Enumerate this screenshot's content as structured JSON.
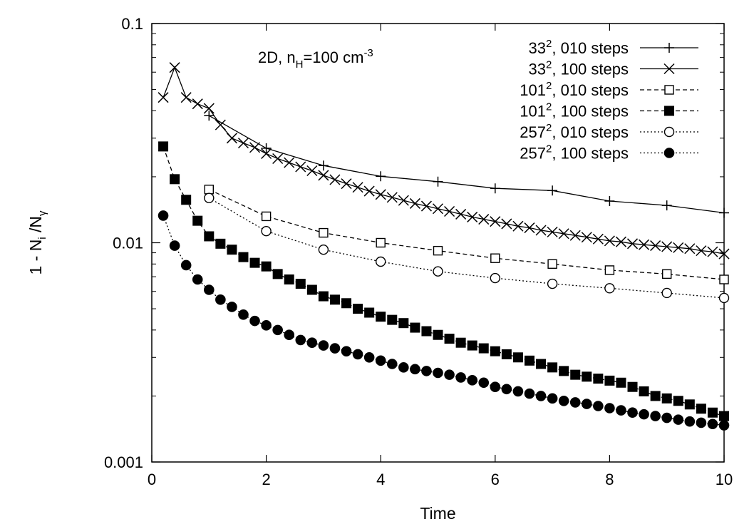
{
  "chart_data": {
    "type": "line",
    "xlabel": "Time",
    "ylabel_parts": [
      "1 - N",
      "i",
      " /N",
      "γ"
    ],
    "xlim": [
      0,
      10
    ],
    "ylim": [
      0.001,
      0.1
    ],
    "yscale": "log",
    "grid": false,
    "legend_position": "top-right",
    "x_ticks": [
      0,
      2,
      4,
      6,
      8,
      10
    ],
    "x_tick_labels": [
      "0",
      "2",
      "4",
      "6",
      "8",
      "10"
    ],
    "y_ticks": [
      0.001,
      0.01,
      0.1
    ],
    "y_tick_labels": [
      "0.001",
      "0.01",
      "0.1"
    ],
    "annotation_parts": [
      "2D, n",
      "H",
      "=100 cm",
      "-3"
    ],
    "series": [
      {
        "name_parts": [
          "33",
          "2",
          ", 010 steps"
        ],
        "marker": "plus",
        "line": "solid",
        "x": [
          1,
          2,
          3,
          4,
          5,
          6,
          7,
          8,
          9,
          10
        ],
        "y": [
          0.038,
          0.027,
          0.0225,
          0.0201,
          0.019,
          0.0177,
          0.0173,
          0.0155,
          0.0148,
          0.0137
        ]
      },
      {
        "name_parts": [
          "33",
          "2",
          ", 100 steps"
        ],
        "marker": "cross",
        "line": "solid",
        "x": [
          0.2,
          0.4,
          0.6,
          0.8,
          1.0,
          1.2,
          1.4,
          1.6,
          1.8,
          2.0,
          2.2,
          2.4,
          2.6,
          2.8,
          3.0,
          3.2,
          3.4,
          3.6,
          3.8,
          4.0,
          4.2,
          4.4,
          4.6,
          4.8,
          5.0,
          5.2,
          5.4,
          5.6,
          5.8,
          6.0,
          6.2,
          6.4,
          6.6,
          6.8,
          7.0,
          7.2,
          7.4,
          7.6,
          7.8,
          8.0,
          8.2,
          8.4,
          8.6,
          8.8,
          9.0,
          9.2,
          9.4,
          9.6,
          9.8,
          10.0
        ],
        "y": [
          0.046,
          0.063,
          0.046,
          0.043,
          0.041,
          0.0345,
          0.03,
          0.0285,
          0.0272,
          0.0255,
          0.0242,
          0.0232,
          0.0222,
          0.0213,
          0.0203,
          0.0194,
          0.0186,
          0.0179,
          0.0172,
          0.0166,
          0.0161,
          0.0156,
          0.0151,
          0.0147,
          0.0143,
          0.0139,
          0.0135,
          0.0131,
          0.0128,
          0.0125,
          0.0122,
          0.0119,
          0.0117,
          0.0114,
          0.0112,
          0.011,
          0.0108,
          0.0106,
          0.0104,
          0.0102,
          0.0101,
          0.0099,
          0.0098,
          0.0097,
          0.0096,
          0.0095,
          0.0094,
          0.0092,
          0.0091,
          0.0089
        ]
      },
      {
        "name_parts": [
          "101",
          "2",
          ", 010 steps"
        ],
        "marker": "open-square",
        "line": "dashed",
        "x": [
          1,
          2,
          3,
          4,
          5,
          6,
          7,
          8,
          9,
          10
        ],
        "y": [
          0.0175,
          0.0132,
          0.0111,
          0.01,
          0.0092,
          0.0085,
          0.008,
          0.0075,
          0.0072,
          0.0068
        ]
      },
      {
        "name_parts": [
          "101",
          "2",
          ", 100 steps"
        ],
        "marker": "filled-square",
        "line": "dashed",
        "x": [
          0.2,
          0.4,
          0.6,
          0.8,
          1.0,
          1.2,
          1.4,
          1.6,
          1.8,
          2.0,
          2.2,
          2.4,
          2.6,
          2.8,
          3.0,
          3.2,
          3.4,
          3.6,
          3.8,
          4.0,
          4.2,
          4.4,
          4.6,
          4.8,
          5.0,
          5.2,
          5.4,
          5.6,
          5.8,
          6.0,
          6.2,
          6.4,
          6.6,
          6.8,
          7.0,
          7.2,
          7.4,
          7.6,
          7.8,
          8.0,
          8.2,
          8.4,
          8.6,
          8.8,
          9.0,
          9.2,
          9.4,
          9.6,
          9.8,
          10.0
        ],
        "y": [
          0.0275,
          0.0195,
          0.0157,
          0.0126,
          0.0107,
          0.0099,
          0.0093,
          0.0086,
          0.0081,
          0.0078,
          0.0072,
          0.0068,
          0.0065,
          0.0061,
          0.0057,
          0.0055,
          0.0053,
          0.005,
          0.0048,
          0.0046,
          0.00445,
          0.0043,
          0.0041,
          0.00395,
          0.0038,
          0.00365,
          0.0035,
          0.0034,
          0.0033,
          0.0032,
          0.0031,
          0.003,
          0.0029,
          0.0028,
          0.0027,
          0.0026,
          0.0025,
          0.00245,
          0.0024,
          0.00235,
          0.0023,
          0.0022,
          0.0021,
          0.002,
          0.00195,
          0.0019,
          0.00183,
          0.00175,
          0.00168,
          0.00162
        ]
      },
      {
        "name_parts": [
          "257",
          "2",
          ", 010 steps"
        ],
        "marker": "open-circle",
        "line": "dotted",
        "x": [
          1,
          2,
          3,
          4,
          5,
          6,
          7,
          8,
          9,
          10
        ],
        "y": [
          0.016,
          0.0113,
          0.0093,
          0.0082,
          0.0074,
          0.0069,
          0.0065,
          0.0062,
          0.0059,
          0.0056
        ]
      },
      {
        "name_parts": [
          "257",
          "2",
          ", 100 steps"
        ],
        "marker": "filled-circle",
        "line": "dotted",
        "x": [
          0.2,
          0.4,
          0.6,
          0.8,
          1.0,
          1.2,
          1.4,
          1.6,
          1.8,
          2.0,
          2.2,
          2.4,
          2.6,
          2.8,
          3.0,
          3.2,
          3.4,
          3.6,
          3.8,
          4.0,
          4.2,
          4.4,
          4.6,
          4.8,
          5.0,
          5.2,
          5.4,
          5.6,
          5.8,
          6.0,
          6.2,
          6.4,
          6.6,
          6.8,
          7.0,
          7.2,
          7.4,
          7.6,
          7.8,
          8.0,
          8.2,
          8.4,
          8.6,
          8.8,
          9.0,
          9.2,
          9.4,
          9.6,
          9.8,
          10.0
        ],
        "y": [
          0.0133,
          0.0097,
          0.0079,
          0.0068,
          0.0061,
          0.0055,
          0.0051,
          0.0047,
          0.0044,
          0.0042,
          0.004,
          0.0038,
          0.0036,
          0.0035,
          0.0034,
          0.0033,
          0.0032,
          0.0031,
          0.003,
          0.0029,
          0.0028,
          0.0027,
          0.00265,
          0.0026,
          0.00255,
          0.0025,
          0.00243,
          0.00236,
          0.0023,
          0.0022,
          0.00215,
          0.0021,
          0.00205,
          0.002,
          0.00195,
          0.0019,
          0.00187,
          0.00184,
          0.0018,
          0.00176,
          0.00172,
          0.00168,
          0.00165,
          0.00162,
          0.00159,
          0.00156,
          0.00153,
          0.00151,
          0.00149,
          0.00147
        ]
      }
    ]
  }
}
